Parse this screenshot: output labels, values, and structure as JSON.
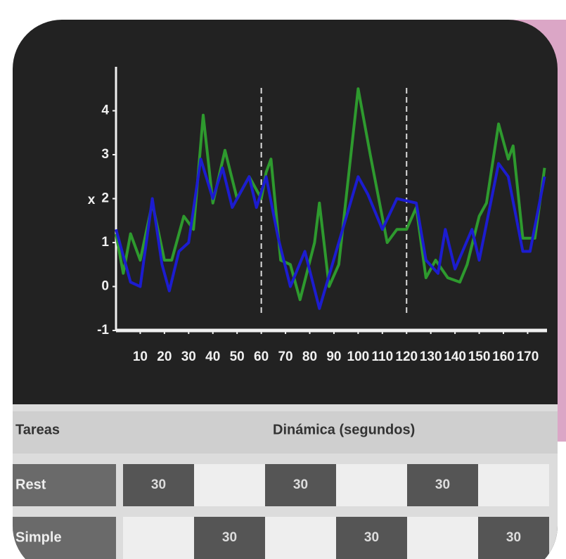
{
  "chart_data": {
    "type": "line",
    "y_label": "x",
    "xlim": [
      0,
      178
    ],
    "ylim": [
      -1,
      5
    ],
    "xticks": [
      10,
      20,
      30,
      40,
      50,
      60,
      70,
      80,
      90,
      100,
      110,
      120,
      130,
      140,
      150,
      160,
      170
    ],
    "yticks": [
      -1,
      0,
      1,
      2,
      3,
      4
    ],
    "vlines": [
      60,
      120
    ],
    "series": [
      {
        "color": "#2e9a2e",
        "x": [
          0,
          3,
          6,
          10,
          15,
          20,
          23,
          28,
          32,
          36,
          40,
          45,
          50,
          55,
          58,
          60,
          62,
          64,
          68,
          72,
          76,
          82,
          84,
          88,
          92,
          100,
          105,
          112,
          116,
          120,
          124,
          128,
          132,
          137,
          142,
          145,
          150,
          153,
          158,
          162,
          164,
          168,
          173,
          177
        ],
        "values": [
          1.2,
          0.3,
          1.2,
          0.6,
          1.9,
          0.6,
          0.6,
          1.6,
          1.3,
          3.9,
          1.9,
          3.1,
          2.0,
          2.5,
          2.2,
          2.0,
          2.6,
          2.9,
          0.6,
          0.5,
          -0.3,
          1.0,
          1.9,
          0.0,
          0.5,
          4.5,
          3.0,
          1.0,
          1.3,
          1.3,
          1.8,
          0.2,
          0.6,
          0.2,
          0.1,
          0.5,
          1.6,
          1.9,
          3.7,
          2.9,
          3.2,
          1.1,
          1.1,
          2.7
        ]
      },
      {
        "color": "#1c1ccf",
        "x": [
          0,
          3,
          6,
          10,
          15,
          19,
          22,
          26,
          30,
          35,
          40,
          44,
          48,
          55,
          58,
          62,
          67,
          72,
          78,
          84,
          92,
          100,
          104,
          110,
          116,
          124,
          128,
          133,
          136,
          140,
          147,
          150,
          158,
          162,
          168,
          171,
          177
        ],
        "values": [
          1.3,
          0.7,
          0.1,
          0.0,
          2.0,
          0.5,
          -0.1,
          0.8,
          1.0,
          2.9,
          2.0,
          2.7,
          1.8,
          2.5,
          1.8,
          2.5,
          1.1,
          0.0,
          0.8,
          -0.5,
          1.0,
          2.5,
          2.1,
          1.3,
          2.0,
          1.9,
          0.6,
          0.3,
          1.3,
          0.4,
          1.3,
          0.6,
          2.8,
          2.5,
          0.8,
          0.8,
          2.5
        ]
      }
    ]
  },
  "table": {
    "header": [
      "Tareas",
      "Dinámica (segundos)"
    ],
    "rows": [
      {
        "label": "Rest",
        "values": [
          30,
          30,
          30
        ]
      },
      {
        "label": "Simple",
        "values": [
          30,
          30,
          30
        ]
      }
    ]
  }
}
